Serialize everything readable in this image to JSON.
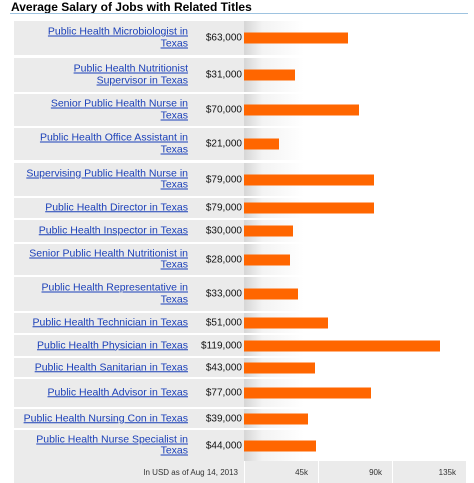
{
  "title": "Average Salary of Jobs with Related Titles",
  "footer_note": "In USD as of Aug 14, 2013",
  "chart_data": {
    "type": "bar",
    "orientation": "horizontal",
    "title": "Average Salary of Jobs with Related Titles",
    "xlim": [
      0,
      135000
    ],
    "x_ticks": [
      "45k",
      "90k",
      "135k"
    ],
    "bar_color": "#ff6600",
    "categories": [
      "Public Health Microbiologist in Texas",
      "Public Health Nutritionist Supervisor in Texas",
      "Senior Public Health Nurse in Texas",
      "Public Health Office Assistant in Texas",
      "Supervising Public Health Nurse in Texas",
      "Public Health Director in Texas",
      "Public Health Inspector in Texas",
      "Senior Public Health Nutritionist in Texas",
      "Public Health Representative in Texas",
      "Public Health Technician in Texas",
      "Public Health Physician in Texas",
      "Public Health Sanitarian in Texas",
      "Public Health Advisor in Texas",
      "Public Health Nursing Con in Texas",
      "Public Health Nurse Specialist in Texas"
    ],
    "values": [
      63000,
      31000,
      70000,
      21000,
      79000,
      79000,
      30000,
      28000,
      33000,
      51000,
      119000,
      43000,
      77000,
      39000,
      44000
    ],
    "value_labels": [
      "$63,000",
      "$31,000",
      "$70,000",
      "$21,000",
      "$79,000",
      "$79,000",
      "$30,000",
      "$28,000",
      "$33,000",
      "$51,000",
      "$119,000",
      "$43,000",
      "$77,000",
      "$39,000",
      "$44,000"
    ]
  }
}
